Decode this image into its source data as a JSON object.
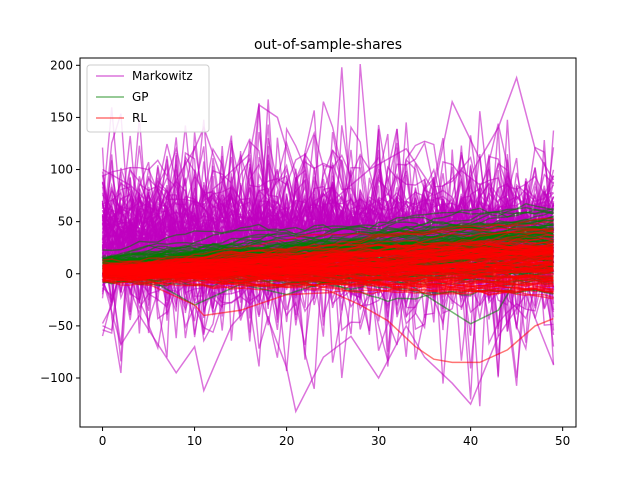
{
  "chart_data": {
    "type": "line",
    "title": "out-of-sample-shares",
    "xlabel": "",
    "ylabel": "",
    "xlim": [
      -2.45,
      51.45
    ],
    "ylim": [
      -147,
      207
    ],
    "x_ticks": [
      0,
      10,
      20,
      30,
      40,
      50
    ],
    "y_ticks": [
      -100,
      -50,
      0,
      50,
      100,
      150,
      200
    ],
    "grid": false,
    "legend_placement": "top-left",
    "n_points": 50,
    "series": [
      {
        "name": "Markowitz",
        "color": "#bf00bf",
        "opacity": 0.55,
        "line_count": 120
      },
      {
        "name": "GP",
        "color": "#008000",
        "opacity": 0.55,
        "line_count": 120
      },
      {
        "name": "RL",
        "color": "#ff0000",
        "opacity": 0.55,
        "line_count": 120
      }
    ],
    "highlighted_paths": [
      {
        "series": "Markowitz",
        "x": [
          0,
          3,
          6,
          10,
          11,
          13,
          16,
          17,
          19,
          21,
          23,
          25,
          29,
          33,
          36,
          38,
          41,
          43,
          45,
          47,
          49
        ],
        "y": [
          100,
          85,
          60,
          120,
          140,
          90,
          115,
          162,
          150,
          90,
          135,
          70,
          100,
          120,
          80,
          165,
          110,
          140,
          188,
          120,
          90
        ]
      },
      {
        "series": "Markowitz",
        "x": [
          0,
          2,
          4,
          8,
          10,
          11,
          14,
          17,
          20,
          21,
          24,
          27,
          30,
          33,
          35,
          38,
          40,
          43,
          46,
          49
        ],
        "y": [
          -5,
          -68,
          -40,
          -95,
          -70,
          -112,
          -50,
          -20,
          -90,
          -132,
          -80,
          -60,
          -100,
          -50,
          -80,
          -105,
          -125,
          -60,
          -20,
          -87
        ]
      },
      {
        "series": "RL",
        "x": [
          0,
          5,
          10,
          11,
          15,
          20,
          25,
          28,
          31,
          34,
          36,
          38,
          41,
          44,
          47,
          49
        ],
        "y": [
          -3,
          -10,
          -30,
          -40,
          -35,
          -20,
          -18,
          -30,
          -45,
          -70,
          -82,
          -85,
          -85,
          -73,
          -50,
          -43
        ]
      },
      {
        "series": "GP",
        "x": [
          0,
          5,
          10,
          15,
          20,
          25,
          30,
          35,
          40,
          43,
          46,
          49
        ],
        "y": [
          5,
          -5,
          -30,
          -10,
          -20,
          -5,
          10,
          -20,
          -48,
          -35,
          10,
          20
        ]
      }
    ]
  },
  "legend": {
    "items": [
      {
        "label": "Markowitz",
        "color": "#bf00bf"
      },
      {
        "label": "GP",
        "color": "#008000"
      },
      {
        "label": "RL",
        "color": "#ff0000"
      }
    ]
  }
}
